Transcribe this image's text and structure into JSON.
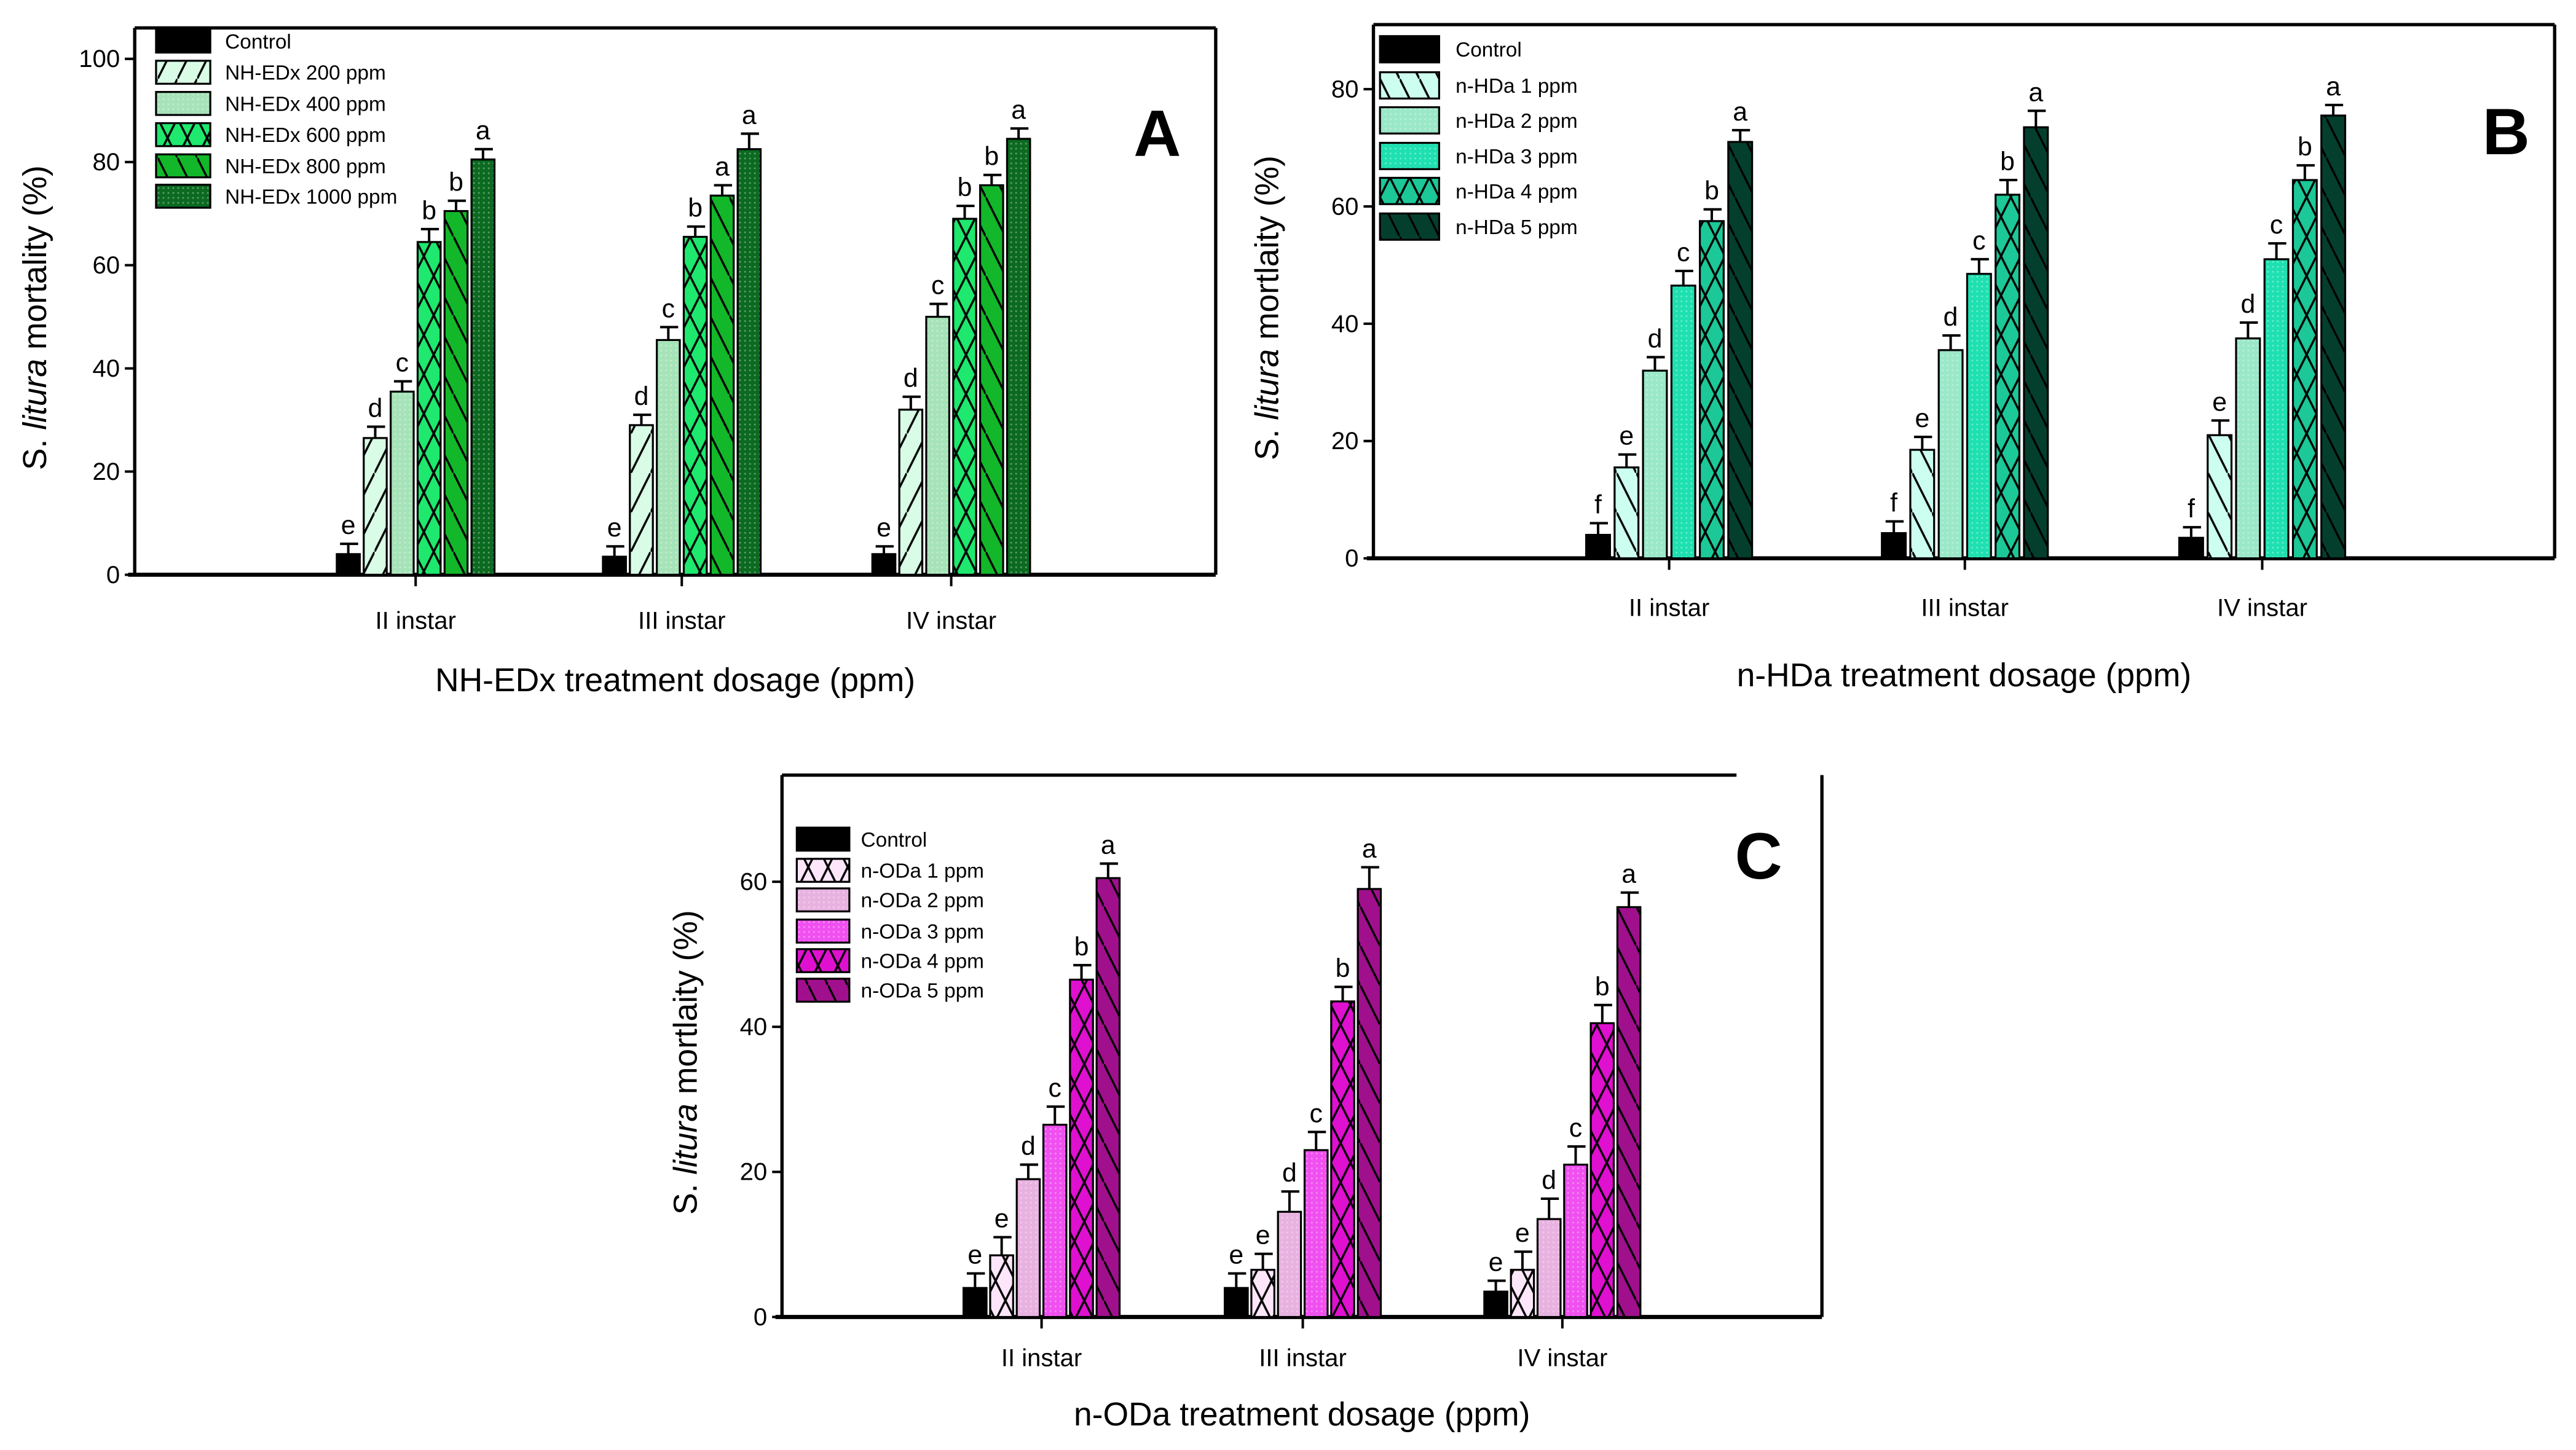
{
  "chart_data": [
    {
      "type": "bar",
      "panel_label": "A",
      "xlabel": "NH-EDx treatment dosage (ppm)",
      "ylabel_parts": [
        "S. ",
        "litura",
        " mortality (%)"
      ],
      "ylim": [
        0,
        106
      ],
      "yticks": [
        0,
        20,
        40,
        60,
        80,
        100
      ],
      "grid": false,
      "legend_position": "top-left",
      "categories": [
        "II instar",
        "III instar",
        "IV instar"
      ],
      "series": [
        {
          "name": "Control",
          "color": "#000000",
          "pattern": "solid",
          "values": [
            4,
            3.5,
            4
          ],
          "errors": [
            2,
            2,
            1.5
          ],
          "letters": [
            "e",
            "e",
            "e"
          ]
        },
        {
          "name": "NH-EDx 200 ppm",
          "color": "#d9fce6",
          "pattern": "slash",
          "values": [
            26.5,
            29,
            32
          ],
          "errors": [
            2.2,
            2,
            2.5
          ],
          "letters": [
            "d",
            "d",
            "d"
          ]
        },
        {
          "name": "NH-EDx 400 ppm",
          "color": "#a6e3b8",
          "pattern": "dots",
          "values": [
            35.5,
            45.5,
            50
          ],
          "errors": [
            2,
            2.5,
            2.5
          ],
          "letters": [
            "c",
            "c",
            "c"
          ]
        },
        {
          "name": "NH-EDx 600 ppm",
          "color": "#1ee86e",
          "pattern": "cross",
          "values": [
            64.5,
            65.5,
            69
          ],
          "errors": [
            2.5,
            2,
            2.5
          ],
          "letters": [
            "b",
            "b",
            "b"
          ]
        },
        {
          "name": "NH-EDx 800 ppm",
          "color": "#12b82a",
          "pattern": "backslash",
          "values": [
            70.5,
            73.5,
            75.5
          ],
          "errors": [
            2,
            2,
            2
          ],
          "letters": [
            "b",
            "a",
            "b"
          ]
        },
        {
          "name": "NH-EDx 1000 ppm",
          "color": "#0b6a20",
          "pattern": "dots",
          "values": [
            80.5,
            82.5,
            84.5
          ],
          "errors": [
            2,
            3,
            2
          ],
          "letters": [
            "a",
            "a",
            "a"
          ]
        }
      ]
    },
    {
      "type": "bar",
      "panel_label": "B",
      "xlabel": "n-HDa treatment dosage (ppm)",
      "ylabel_parts": [
        "S. ",
        "litura",
        " mortlaity (%)"
      ],
      "ylim": [
        0,
        91
      ],
      "yticks": [
        0,
        20,
        40,
        60,
        80
      ],
      "grid": false,
      "legend_position": "top-left",
      "categories": [
        "II instar",
        "III instar",
        "IV instar"
      ],
      "series": [
        {
          "name": "Control",
          "color": "#000000",
          "pattern": "solid",
          "values": [
            4,
            4.3,
            3.5
          ],
          "errors": [
            2,
            2,
            1.8
          ],
          "letters": [
            "f",
            "f",
            "f"
          ]
        },
        {
          "name": "n-HDa 1 ppm",
          "color": "#ccfff0",
          "pattern": "backslash",
          "values": [
            15.5,
            18.5,
            21
          ],
          "errors": [
            2.2,
            2.2,
            2.5
          ],
          "letters": [
            "e",
            "e",
            "e"
          ]
        },
        {
          "name": "n-HDa 2 ppm",
          "color": "#9ae8c8",
          "pattern": "dots",
          "values": [
            32,
            35.5,
            37.5
          ],
          "errors": [
            2.3,
            2.5,
            2.7
          ],
          "letters": [
            "d",
            "d",
            "d"
          ]
        },
        {
          "name": "n-HDa 3 ppm",
          "color": "#1ee0b0",
          "pattern": "dots",
          "values": [
            46.5,
            48.5,
            51
          ],
          "errors": [
            2.5,
            2.5,
            2.7
          ],
          "letters": [
            "c",
            "c",
            "c"
          ]
        },
        {
          "name": "n-HDa 4 ppm",
          "color": "#1cc898",
          "pattern": "cross",
          "values": [
            57.5,
            62,
            64.5
          ],
          "errors": [
            2,
            2.5,
            2.5
          ],
          "letters": [
            "b",
            "b",
            "b"
          ]
        },
        {
          "name": "n-HDa 5 ppm",
          "color": "#043f2e",
          "pattern": "backslash",
          "values": [
            71,
            73.5,
            75.5
          ],
          "errors": [
            2,
            2.8,
            1.8
          ],
          "letters": [
            "a",
            "a",
            "a"
          ]
        }
      ]
    },
    {
      "type": "bar",
      "panel_label": "C",
      "xlabel": "n-ODa treatment dosage (ppm)",
      "ylabel_parts": [
        "S. ",
        "litura",
        " mortlaity (%)"
      ],
      "ylim": [
        0,
        74.7
      ],
      "yticks": [
        0,
        20,
        40,
        60
      ],
      "grid": false,
      "legend_position": "top-left",
      "categories": [
        "II instar",
        "III instar",
        "IV instar"
      ],
      "series": [
        {
          "name": "Control",
          "color": "#000000",
          "pattern": "solid",
          "values": [
            4,
            4,
            3.5
          ],
          "errors": [
            2,
            2,
            1.5
          ],
          "letters": [
            "e",
            "e",
            "e"
          ]
        },
        {
          "name": "n-ODa 1 ppm",
          "color": "#fde6fa",
          "pattern": "cross",
          "values": [
            8.5,
            6.5,
            6.5
          ],
          "errors": [
            2.5,
            2.2,
            2.5
          ],
          "letters": [
            "e",
            "e",
            "e"
          ]
        },
        {
          "name": "n-ODa 2 ppm",
          "color": "#e8b2e0",
          "pattern": "dots",
          "values": [
            19,
            14.5,
            13.5
          ],
          "errors": [
            2,
            2.8,
            2.8
          ],
          "letters": [
            "d",
            "d",
            "d"
          ]
        },
        {
          "name": "n-ODa 3 ppm",
          "color": "#f050f0",
          "pattern": "dots",
          "values": [
            26.5,
            23,
            21
          ],
          "errors": [
            2.5,
            2.5,
            2.5
          ],
          "letters": [
            "c",
            "c",
            "c"
          ]
        },
        {
          "name": "n-ODa 4 ppm",
          "color": "#e010d0",
          "pattern": "cross",
          "values": [
            46.5,
            43.5,
            40.5
          ],
          "errors": [
            2,
            2,
            2.5
          ],
          "letters": [
            "b",
            "b",
            "b"
          ]
        },
        {
          "name": "n-ODa 5 ppm",
          "color": "#a0108c",
          "pattern": "backslash",
          "values": [
            60.5,
            59,
            56.5
          ],
          "errors": [
            2,
            3,
            2
          ],
          "letters": [
            "a",
            "a",
            "a"
          ]
        }
      ]
    }
  ]
}
